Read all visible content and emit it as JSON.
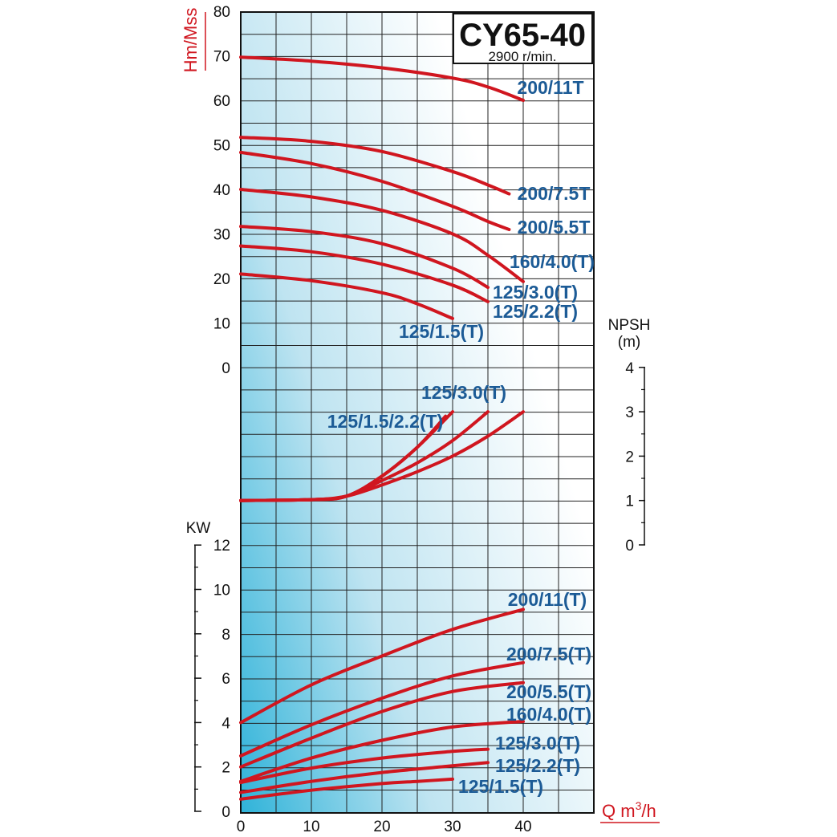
{
  "chart_data": {
    "type": "line",
    "title": "CY65-40",
    "subtitle": "2900 r/min.",
    "xlabel": "Q m³/h",
    "xlabel_main": "Q m",
    "xlabel_sup": "3",
    "xlabel_tail": "/h",
    "xlim": [
      0,
      50
    ],
    "x_ticks": [
      "0",
      "10",
      "20",
      "30",
      "40"
    ],
    "grid": true,
    "colors": {
      "curve": "#d0161f",
      "label": "#1c5b96",
      "grid": "#222222",
      "axis_title": "#d0161f"
    },
    "head": {
      "ylabel": "Hm/Mss",
      "ylim": [
        0,
        80
      ],
      "y_ticks": [
        "0",
        "10",
        "20",
        "30",
        "40",
        "50",
        "60",
        "70",
        "80"
      ],
      "series": [
        {
          "name": "200/11T",
          "x": [
            0,
            10,
            20,
            30,
            35,
            40
          ],
          "y": [
            69.7,
            68.8,
            67.3,
            65,
            63,
            60
          ]
        },
        {
          "name": "200/7.5T",
          "x": [
            0,
            10,
            20,
            30,
            35,
            38
          ],
          "y": [
            51.7,
            50.8,
            48.5,
            44,
            41,
            39
          ]
        },
        {
          "name": "200/5.5T",
          "x": [
            0,
            10,
            20,
            30,
            35,
            38
          ],
          "y": [
            48.3,
            45.8,
            41.8,
            36.2,
            32.8,
            31
          ]
        },
        {
          "name": "160/4.0(T)",
          "x": [
            0,
            10,
            20,
            30,
            35,
            40
          ],
          "y": [
            40,
            38.3,
            35.3,
            30,
            25.2,
            19.3
          ]
        },
        {
          "name": "125/3.0(T)",
          "x": [
            0,
            10,
            20,
            30,
            35
          ],
          "y": [
            31.7,
            30.5,
            27.8,
            22.3,
            18
          ]
        },
        {
          "name": "125/2.2(T)",
          "x": [
            0,
            10,
            20,
            30,
            35
          ],
          "y": [
            27.3,
            26,
            23.2,
            18.5,
            14.8
          ]
        },
        {
          "name": "125/1.5(T)",
          "x": [
            0,
            10,
            20,
            25,
            30
          ],
          "y": [
            21,
            19.5,
            16.8,
            14.3,
            11
          ]
        }
      ]
    },
    "npsh": {
      "ylabel": "NPSH",
      "ylabel_unit": "(m)",
      "ylim": [
        0,
        4
      ],
      "y_ticks": [
        "0",
        "1",
        "2",
        "3",
        "4"
      ],
      "series": [
        {
          "name": "125/1.5/2.2(T)",
          "x": [
            0,
            10,
            15,
            20,
            25,
            29
          ],
          "y": [
            1.0,
            1.02,
            1.1,
            1.55,
            2.2,
            2.9
          ]
        },
        {
          "name": "125/3.0(T)",
          "x": [
            0,
            10,
            15,
            20,
            25,
            30
          ],
          "y": [
            1.0,
            1.02,
            1.1,
            1.55,
            2.2,
            3.0
          ]
        },
        {
          "name": "125/3.0(T)",
          "x": [
            0,
            10,
            15,
            20,
            25,
            30,
            35
          ],
          "y": [
            1.0,
            1.02,
            1.1,
            1.45,
            1.85,
            2.35,
            3.0
          ]
        },
        {
          "name": "",
          "x": [
            0,
            10,
            15,
            20,
            25,
            30,
            35,
            40
          ],
          "y": [
            1.0,
            1.02,
            1.1,
            1.35,
            1.65,
            2.0,
            2.45,
            3.0
          ]
        }
      ]
    },
    "power": {
      "ylabel": "KW",
      "ylim": [
        0,
        12
      ],
      "y_ticks": [
        "0",
        "2",
        "4",
        "6",
        "8",
        "10",
        "12"
      ],
      "series": [
        {
          "name": "200/11(T)",
          "x": [
            0,
            10,
            20,
            30,
            40
          ],
          "y": [
            4.0,
            5.7,
            7.0,
            8.2,
            9.1
          ]
        },
        {
          "name": "200/7.5(T)",
          "x": [
            0,
            10,
            20,
            30,
            40
          ],
          "y": [
            2.5,
            3.9,
            5.1,
            6.1,
            6.7
          ]
        },
        {
          "name": "200/5.5(T)",
          "x": [
            0,
            10,
            20,
            30,
            40
          ],
          "y": [
            2.0,
            3.3,
            4.5,
            5.4,
            5.8
          ]
        },
        {
          "name": "160/4.0(T)",
          "x": [
            0,
            10,
            20,
            30,
            40
          ],
          "y": [
            1.35,
            2.4,
            3.2,
            3.8,
            4.05
          ]
        },
        {
          "name": "125/3.0(T)",
          "x": [
            0,
            10,
            20,
            30,
            35
          ],
          "y": [
            1.3,
            1.95,
            2.4,
            2.7,
            2.8
          ]
        },
        {
          "name": "125/2.2(T)",
          "x": [
            0,
            10,
            20,
            30,
            35
          ],
          "y": [
            0.85,
            1.35,
            1.75,
            2.05,
            2.2
          ]
        },
        {
          "name": "125/1.5(T)",
          "x": [
            0,
            10,
            20,
            25,
            30
          ],
          "y": [
            0.55,
            0.95,
            1.25,
            1.35,
            1.45
          ]
        }
      ]
    }
  }
}
